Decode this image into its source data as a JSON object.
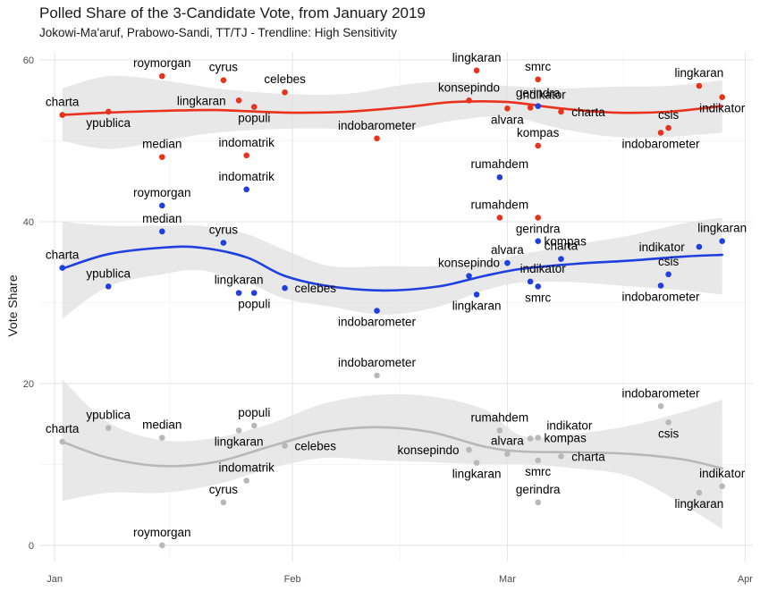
{
  "chart_data": {
    "type": "scatter",
    "title": "Polled Share of the 3-Candidate Vote, from January 2019",
    "subtitle": "Jokowi-Ma'aruf, Prabowo-Sandi, TT/TJ - Trendline: High Sensitivity",
    "xlabel": "",
    "ylabel": "Vote Share",
    "xlim": [
      "2018-12-30",
      "2019-04-02"
    ],
    "ylim": [
      -2,
      61
    ],
    "x_ticks": [
      {
        "date": "2019-01-01",
        "label": "Jan"
      },
      {
        "date": "2019-02-01",
        "label": "Feb"
      },
      {
        "date": "2019-03-01",
        "label": "Mar"
      },
      {
        "date": "2019-04-01",
        "label": "Apr"
      }
    ],
    "y_ticks": [
      0,
      20,
      40,
      60
    ],
    "grid": true,
    "legend": "none",
    "series": [
      {
        "color": "#E8321E",
        "points": [
          {
            "date": "2019-01-02",
            "value": 53.2,
            "label": "charta"
          },
          {
            "date": "2019-01-08",
            "value": 53.6,
            "label": "ypublica"
          },
          {
            "date": "2019-01-15",
            "value": 58.0,
            "label": "roymorgan"
          },
          {
            "date": "2019-01-15",
            "value": 48.0,
            "label": "median"
          },
          {
            "date": "2019-01-23",
            "value": 57.5,
            "label": "cyrus"
          },
          {
            "date": "2019-01-25",
            "value": 55.0,
            "label": "lingkaran"
          },
          {
            "date": "2019-01-26",
            "value": 48.2,
            "label": "indomatrik"
          },
          {
            "date": "2019-01-27",
            "value": 54.2,
            "label": "populi"
          },
          {
            "date": "2019-01-31",
            "value": 56.0,
            "label": "celebes"
          },
          {
            "date": "2019-02-12",
            "value": 50.3,
            "label": "indobarometer"
          },
          {
            "date": "2019-02-24",
            "value": 55.0,
            "label": "konsepindo"
          },
          {
            "date": "2019-02-25",
            "value": 58.7,
            "label": "lingkaran"
          },
          {
            "date": "2019-02-28",
            "value": 40.5,
            "label": "rumahdem"
          },
          {
            "date": "2019-03-01",
            "value": 54.0,
            "label": "alvara"
          },
          {
            "date": "2019-03-04",
            "value": 54.1,
            "label": "indikator"
          },
          {
            "date": "2019-03-05",
            "value": 57.6,
            "label": "smrc"
          },
          {
            "date": "2019-03-05",
            "value": 49.4,
            "label": "kompas"
          },
          {
            "date": "2019-03-05",
            "value": 40.5,
            "label": "gerindra"
          },
          {
            "date": "2019-03-08",
            "value": 53.6,
            "label": "charta"
          },
          {
            "date": "2019-03-21",
            "value": 51.0,
            "label": "indobarometer"
          },
          {
            "date": "2019-03-22",
            "value": 51.6,
            "label": "csis"
          },
          {
            "date": "2019-03-26",
            "value": 56.8,
            "label": "lingkaran"
          },
          {
            "date": "2019-03-29",
            "value": 55.4,
            "label": "indikator"
          }
        ],
        "trend": [
          {
            "date": "2019-01-02",
            "value": 53.2
          },
          {
            "date": "2019-01-08",
            "value": 53.5
          },
          {
            "date": "2019-01-15",
            "value": 53.7
          },
          {
            "date": "2019-01-22",
            "value": 53.8
          },
          {
            "date": "2019-01-31",
            "value": 53.5
          },
          {
            "date": "2019-02-08",
            "value": 53.6
          },
          {
            "date": "2019-02-16",
            "value": 54.2
          },
          {
            "date": "2019-02-22",
            "value": 54.8
          },
          {
            "date": "2019-03-01",
            "value": 54.8
          },
          {
            "date": "2019-03-08",
            "value": 54.0
          },
          {
            "date": "2019-03-15",
            "value": 53.5
          },
          {
            "date": "2019-03-22",
            "value": 53.6
          },
          {
            "date": "2019-03-29",
            "value": 54.3
          }
        ],
        "band": [
          {
            "date": "2019-01-02",
            "lo": 50.0,
            "hi": 56.5
          },
          {
            "date": "2019-01-08",
            "lo": 49.0,
            "hi": 58.0
          },
          {
            "date": "2019-01-15",
            "lo": 50.0,
            "hi": 57.5
          },
          {
            "date": "2019-01-22",
            "lo": 51.0,
            "hi": 56.5
          },
          {
            "date": "2019-01-31",
            "lo": 51.5,
            "hi": 55.8
          },
          {
            "date": "2019-02-08",
            "lo": 51.5,
            "hi": 55.8
          },
          {
            "date": "2019-02-16",
            "lo": 51.5,
            "hi": 57.0
          },
          {
            "date": "2019-02-22",
            "lo": 52.5,
            "hi": 57.3
          },
          {
            "date": "2019-03-01",
            "lo": 53.0,
            "hi": 56.8
          },
          {
            "date": "2019-03-08",
            "lo": 51.5,
            "hi": 56.5
          },
          {
            "date": "2019-03-15",
            "lo": 50.5,
            "hi": 56.7
          },
          {
            "date": "2019-03-22",
            "lo": 50.5,
            "hi": 56.8
          },
          {
            "date": "2019-03-29",
            "lo": 51.0,
            "hi": 57.5
          }
        ]
      },
      {
        "color": "#1F3FE0",
        "points": [
          {
            "date": "2019-01-02",
            "value": 34.3,
            "label": "charta"
          },
          {
            "date": "2019-01-08",
            "value": 32.0,
            "label": "ypublica"
          },
          {
            "date": "2019-01-15",
            "value": 42.0,
            "label": "roymorgan"
          },
          {
            "date": "2019-01-15",
            "value": 38.8,
            "label": "median"
          },
          {
            "date": "2019-01-23",
            "value": 37.4,
            "label": "cyrus"
          },
          {
            "date": "2019-01-25",
            "value": 31.2,
            "label": "lingkaran"
          },
          {
            "date": "2019-01-26",
            "value": 44.0,
            "label": "indomatrik"
          },
          {
            "date": "2019-01-27",
            "value": 31.2,
            "label": "populi"
          },
          {
            "date": "2019-01-31",
            "value": 31.8,
            "label": "celebes"
          },
          {
            "date": "2019-02-12",
            "value": 29.0,
            "label": "indobarometer"
          },
          {
            "date": "2019-02-24",
            "value": 33.3,
            "label": "konsepindo"
          },
          {
            "date": "2019-02-25",
            "value": 31.0,
            "label": "lingkaran"
          },
          {
            "date": "2019-02-28",
            "value": 45.5,
            "label": "rumahdem"
          },
          {
            "date": "2019-03-01",
            "value": 34.9,
            "label": "alvara"
          },
          {
            "date": "2019-03-04",
            "value": 32.6,
            "label": "indikator"
          },
          {
            "date": "2019-03-05",
            "value": 32.0,
            "label": "smrc"
          },
          {
            "date": "2019-03-05",
            "value": 37.6,
            "label": "kompas"
          },
          {
            "date": "2019-03-05",
            "value": 54.3,
            "label": "gerindra"
          },
          {
            "date": "2019-03-08",
            "value": 35.4,
            "label": "charta"
          },
          {
            "date": "2019-03-21",
            "value": 32.1,
            "label": "indobarometer"
          },
          {
            "date": "2019-03-22",
            "value": 33.5,
            "label": "csis"
          },
          {
            "date": "2019-03-26",
            "value": 36.9,
            "label": "indikator"
          },
          {
            "date": "2019-03-29",
            "value": 37.6,
            "label": "lingkaran"
          }
        ],
        "trend": [
          {
            "date": "2019-01-02",
            "value": 34.2
          },
          {
            "date": "2019-01-08",
            "value": 36.0
          },
          {
            "date": "2019-01-15",
            "value": 36.8
          },
          {
            "date": "2019-01-20",
            "value": 36.8
          },
          {
            "date": "2019-01-26",
            "value": 35.6
          },
          {
            "date": "2019-01-31",
            "value": 33.3
          },
          {
            "date": "2019-02-06",
            "value": 32.0
          },
          {
            "date": "2019-02-13",
            "value": 31.5
          },
          {
            "date": "2019-02-20",
            "value": 32.0
          },
          {
            "date": "2019-02-26",
            "value": 33.3
          },
          {
            "date": "2019-03-03",
            "value": 34.2
          },
          {
            "date": "2019-03-10",
            "value": 34.8
          },
          {
            "date": "2019-03-17",
            "value": 35.2
          },
          {
            "date": "2019-03-24",
            "value": 35.7
          },
          {
            "date": "2019-03-29",
            "value": 35.9
          }
        ],
        "band": [
          {
            "date": "2019-01-02",
            "lo": 28.0,
            "hi": 40.0
          },
          {
            "date": "2019-01-08",
            "lo": 32.0,
            "hi": 39.5
          },
          {
            "date": "2019-01-15",
            "lo": 33.5,
            "hi": 39.5
          },
          {
            "date": "2019-01-20",
            "lo": 34.0,
            "hi": 39.5
          },
          {
            "date": "2019-01-26",
            "lo": 32.5,
            "hi": 38.5
          },
          {
            "date": "2019-01-31",
            "lo": 30.5,
            "hi": 36.5
          },
          {
            "date": "2019-02-06",
            "lo": 29.5,
            "hi": 34.5
          },
          {
            "date": "2019-02-13",
            "lo": 28.5,
            "hi": 34.5
          },
          {
            "date": "2019-02-20",
            "lo": 29.5,
            "hi": 34.5
          },
          {
            "date": "2019-02-26",
            "lo": 31.5,
            "hi": 35.0
          },
          {
            "date": "2019-03-03",
            "lo": 32.5,
            "hi": 36.0
          },
          {
            "date": "2019-03-10",
            "lo": 32.5,
            "hi": 37.2
          },
          {
            "date": "2019-03-17",
            "lo": 32.0,
            "hi": 38.3
          },
          {
            "date": "2019-03-24",
            "lo": 31.5,
            "hi": 39.8
          },
          {
            "date": "2019-03-29",
            "lo": 31.0,
            "hi": 40.5
          }
        ]
      },
      {
        "color": "#B8B8B8",
        "points": [
          {
            "date": "2019-01-02",
            "value": 12.8,
            "label": "charta"
          },
          {
            "date": "2019-01-08",
            "value": 14.5,
            "label": "ypublica"
          },
          {
            "date": "2019-01-15",
            "value": 0.0,
            "label": "roymorgan"
          },
          {
            "date": "2019-01-15",
            "value": 13.3,
            "label": "median"
          },
          {
            "date": "2019-01-23",
            "value": 5.3,
            "label": "cyrus"
          },
          {
            "date": "2019-01-25",
            "value": 14.2,
            "label": "lingkaran"
          },
          {
            "date": "2019-01-26",
            "value": 8.0,
            "label": "indomatrik"
          },
          {
            "date": "2019-01-27",
            "value": 14.8,
            "label": "populi"
          },
          {
            "date": "2019-01-31",
            "value": 12.3,
            "label": "celebes"
          },
          {
            "date": "2019-02-12",
            "value": 21.0,
            "label": "indobarometer"
          },
          {
            "date": "2019-02-24",
            "value": 11.8,
            "label": "konsepindo"
          },
          {
            "date": "2019-02-25",
            "value": 10.2,
            "label": "lingkaran"
          },
          {
            "date": "2019-02-28",
            "value": 14.2,
            "label": "rumahdem"
          },
          {
            "date": "2019-03-01",
            "value": 11.3,
            "label": "alvara"
          },
          {
            "date": "2019-03-04",
            "value": 13.2,
            "label": "indikator"
          },
          {
            "date": "2019-03-05",
            "value": 10.5,
            "label": "smrc"
          },
          {
            "date": "2019-03-05",
            "value": 13.3,
            "label": "kompas"
          },
          {
            "date": "2019-03-05",
            "value": 5.3,
            "label": "gerindra"
          },
          {
            "date": "2019-03-08",
            "value": 11.0,
            "label": "charta"
          },
          {
            "date": "2019-03-21",
            "value": 17.2,
            "label": "indobarometer"
          },
          {
            "date": "2019-03-22",
            "value": 15.2,
            "label": "csis"
          },
          {
            "date": "2019-03-26",
            "value": 6.5,
            "label": "lingkaran"
          },
          {
            "date": "2019-03-29",
            "value": 7.3,
            "label": "indikator"
          }
        ],
        "trend": [
          {
            "date": "2019-01-02",
            "value": 12.8
          },
          {
            "date": "2019-01-08",
            "value": 10.8
          },
          {
            "date": "2019-01-15",
            "value": 9.8
          },
          {
            "date": "2019-01-22",
            "value": 10.3
          },
          {
            "date": "2019-01-29",
            "value": 12.2
          },
          {
            "date": "2019-02-05",
            "value": 14.0
          },
          {
            "date": "2019-02-12",
            "value": 14.6
          },
          {
            "date": "2019-02-19",
            "value": 14.0
          },
          {
            "date": "2019-02-26",
            "value": 12.2
          },
          {
            "date": "2019-03-03",
            "value": 11.6
          },
          {
            "date": "2019-03-10",
            "value": 11.5
          },
          {
            "date": "2019-03-17",
            "value": 11.3
          },
          {
            "date": "2019-03-24",
            "value": 10.6
          },
          {
            "date": "2019-03-29",
            "value": 9.5
          }
        ],
        "band": [
          {
            "date": "2019-01-02",
            "lo": 5.5,
            "hi": 20.5
          },
          {
            "date": "2019-01-08",
            "lo": 6.5,
            "hi": 15.2
          },
          {
            "date": "2019-01-15",
            "lo": 6.5,
            "hi": 13.0
          },
          {
            "date": "2019-01-22",
            "lo": 7.5,
            "hi": 13.3
          },
          {
            "date": "2019-01-29",
            "lo": 9.5,
            "hi": 15.0
          },
          {
            "date": "2019-02-05",
            "lo": 10.8,
            "hi": 17.5
          },
          {
            "date": "2019-02-12",
            "lo": 10.5,
            "hi": 18.6
          },
          {
            "date": "2019-02-19",
            "lo": 10.3,
            "hi": 18.4
          },
          {
            "date": "2019-02-26",
            "lo": 10.0,
            "hi": 16.8
          },
          {
            "date": "2019-03-03",
            "lo": 10.0,
            "hi": 13.5
          },
          {
            "date": "2019-03-10",
            "lo": 9.5,
            "hi": 13.8
          },
          {
            "date": "2019-03-17",
            "lo": 8.5,
            "hi": 14.8
          },
          {
            "date": "2019-03-24",
            "lo": 5.0,
            "hi": 16.5
          },
          {
            "date": "2019-03-29",
            "lo": 2.0,
            "hi": 18.0
          }
        ]
      }
    ]
  }
}
